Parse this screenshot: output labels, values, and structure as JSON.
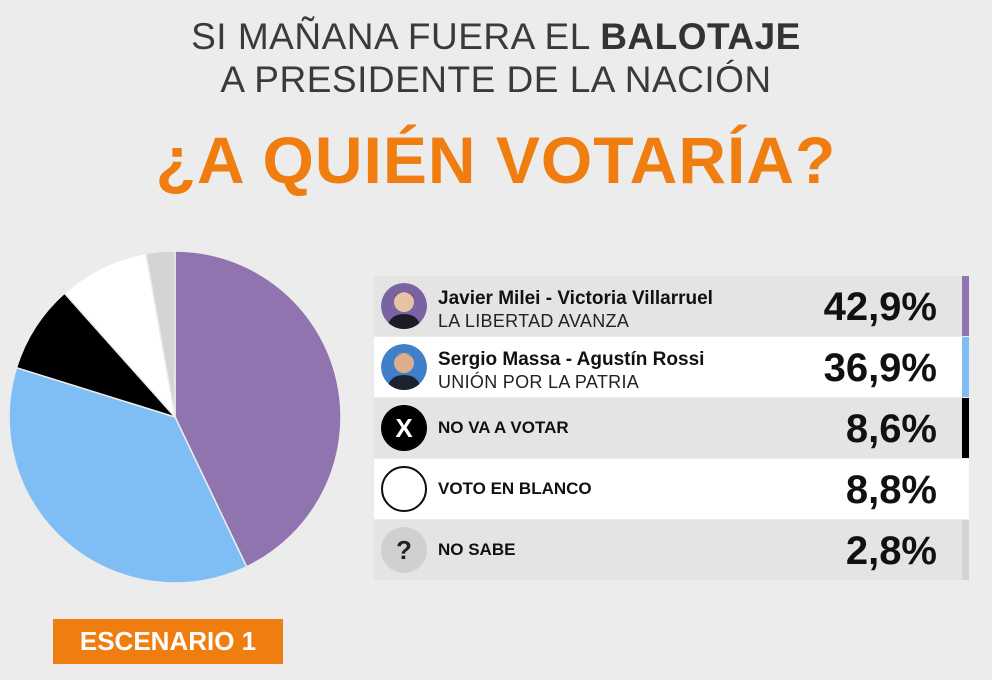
{
  "title": {
    "line1_prefix": "SI MAÑANA FUERA EL ",
    "line1_bold": "BALOTAJE",
    "line2": "A PRESIDENTE DE LA NACIÓN",
    "question": "¿A QUIÉN VOTARÍA?"
  },
  "scenario_label": "ESCENARIO 1",
  "chart_data": {
    "type": "pie",
    "title": "¿A QUIÉN VOTARÍA?",
    "unit": "%",
    "slices": [
      {
        "name": "Javier Milei - Victoria Villarruel",
        "subtitle": "LA LIBERTAD AVANZA",
        "value": 42.9,
        "label": "42,9%",
        "color": "#8f74b0",
        "icon": "candidate-photo"
      },
      {
        "name": "Sergio Massa - Agustín Rossi",
        "subtitle": "UNIÓN POR LA PATRIA",
        "value": 36.9,
        "label": "36,9%",
        "color": "#7fbef5",
        "icon": "candidate-photo"
      },
      {
        "name": "NO VA A VOTAR",
        "value": 8.6,
        "label": "8,6%",
        "color": "#000000",
        "icon": "x-icon"
      },
      {
        "name": "VOTO EN BLANCO",
        "value": 8.8,
        "label": "8,8%",
        "color": "#ffffff",
        "icon": "blank-circle-icon"
      },
      {
        "name": "NO SABE",
        "value": 2.8,
        "label": "2,8%",
        "color": "#d4d4d4",
        "icon": "question-icon"
      }
    ]
  }
}
